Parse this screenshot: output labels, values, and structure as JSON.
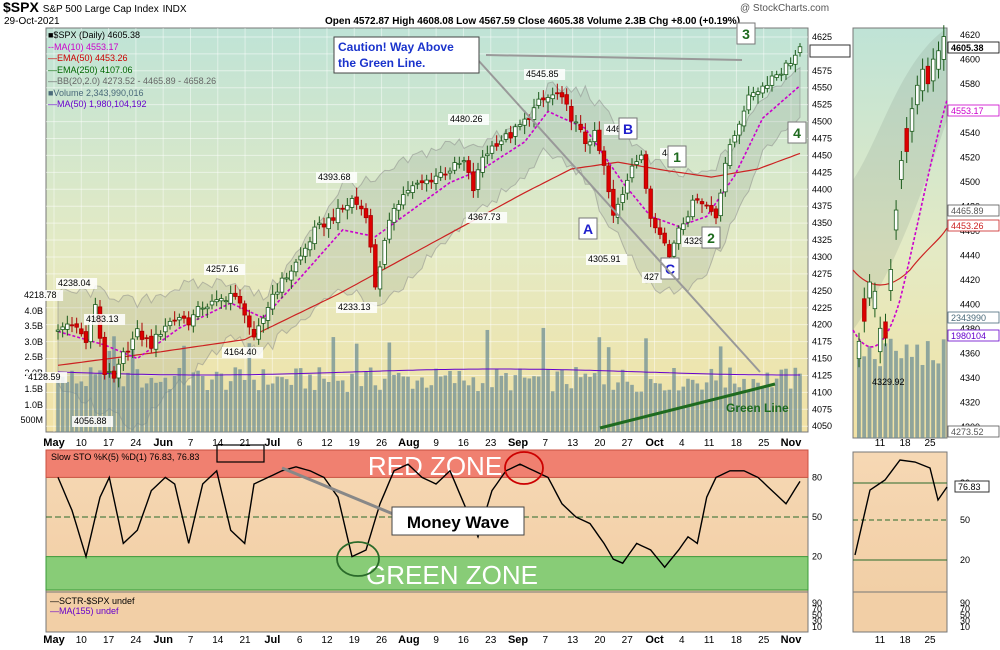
{
  "header": {
    "symbol": "$SPX",
    "name": "S&P 500 Large Cap Index",
    "exchange": "INDX",
    "date": "29-Oct-2021",
    "watermark": "@ StockCharts.com",
    "ohlc": "Open 4572.87  High 4608.08  Low 4567.59  Close 4605.38  Volume 2.3B  Chg +8.00 (+0.19%)"
  },
  "legend": [
    {
      "text": "■$SPX (Daily) 4605.38",
      "color": "#000000"
    },
    {
      "text": "--MA(10) 4553.17",
      "color": "#cc00cc"
    },
    {
      "text": "—EMA(50) 4453.26",
      "color": "#cc0000"
    },
    {
      "text": "—EMA(250) 4107.06",
      "color": "#006600"
    },
    {
      "text": "—BB(20,2.0) 4273.52 - 4465.89 - 4658.26",
      "color": "#666666"
    },
    {
      "text": "■Volume 2,343,990,016",
      "color": "#4a6a7a"
    },
    {
      "text": "—MA(50) 1,980,104,192",
      "color": "#6600cc"
    }
  ],
  "chart_data": {
    "type": "candlestick",
    "y_axis": [
      4050,
      4075,
      4100,
      4125,
      4150,
      4175,
      4200,
      4225,
      4250,
      4275,
      4300,
      4325,
      4350,
      4375,
      4400,
      4425,
      4450,
      4475,
      4500,
      4525,
      4550,
      4575,
      4600,
      4625
    ],
    "volume_axis": [
      "4.0B",
      "3.5B",
      "3.0B",
      "2.5B",
      "2.0B",
      "1.5B",
      "1.0B",
      "500M"
    ],
    "x_labels": [
      "May",
      "10",
      "17",
      "24",
      "Jun",
      "7",
      "14",
      "21",
      "Jul",
      "6",
      "12",
      "19",
      "26",
      "Aug",
      "9",
      "16",
      "23",
      "Sep",
      "7",
      "13",
      "20",
      "27",
      "Oct",
      "4",
      "11",
      "18",
      "25",
      "Nov"
    ],
    "price_path": [
      [
        0,
        4192
      ],
      [
        3,
        4205
      ],
      [
        6,
        4175
      ],
      [
        8,
        4232
      ],
      [
        10,
        4130
      ],
      [
        12,
        4118
      ],
      [
        14,
        4155
      ],
      [
        17,
        4188
      ],
      [
        20,
        4170
      ],
      [
        23,
        4200
      ],
      [
        26,
        4212
      ],
      [
        28,
        4205
      ],
      [
        31,
        4228
      ],
      [
        34,
        4232
      ],
      [
        37,
        4246
      ],
      [
        40,
        4220
      ],
      [
        42,
        4175
      ],
      [
        44,
        4210
      ],
      [
        46,
        4245
      ],
      [
        49,
        4272
      ],
      [
        52,
        4300
      ],
      [
        55,
        4338
      ],
      [
        58,
        4355
      ],
      [
        61,
        4370
      ],
      [
        63,
        4385
      ],
      [
        66,
        4365
      ],
      [
        68,
        4258
      ],
      [
        70,
        4320
      ],
      [
        72,
        4375
      ],
      [
        75,
        4400
      ],
      [
        78,
        4408
      ],
      [
        81,
        4420
      ],
      [
        84,
        4430
      ],
      [
        87,
        4440
      ],
      [
        89,
        4400
      ],
      [
        91,
        4448
      ],
      [
        94,
        4470
      ],
      [
        97,
        4480
      ],
      [
        100,
        4500
      ],
      [
        103,
        4527
      ],
      [
        105,
        4535
      ],
      [
        107,
        4540
      ],
      [
        109,
        4520
      ],
      [
        111,
        4495
      ],
      [
        113,
        4470
      ],
      [
        115,
        4480
      ],
      [
        117,
        4432
      ],
      [
        119,
        4358
      ],
      [
        121,
        4395
      ],
      [
        123,
        4440
      ],
      [
        125,
        4445
      ],
      [
        127,
        4360
      ],
      [
        129,
        4340
      ],
      [
        131,
        4300
      ],
      [
        133,
        4345
      ],
      [
        135,
        4365
      ],
      [
        137,
        4390
      ],
      [
        139,
        4375
      ],
      [
        141,
        4360
      ],
      [
        143,
        4440
      ],
      [
        145,
        4480
      ],
      [
        147,
        4520
      ],
      [
        149,
        4545
      ],
      [
        151,
        4552
      ],
      [
        153,
        4567
      ],
      [
        155,
        4575
      ],
      [
        157,
        4590
      ],
      [
        159,
        4605
      ]
    ],
    "ma10_path": [
      [
        0,
        4190
      ],
      [
        10,
        4170
      ],
      [
        17,
        4150
      ],
      [
        26,
        4195
      ],
      [
        37,
        4232
      ],
      [
        44,
        4210
      ],
      [
        52,
        4270
      ],
      [
        61,
        4340
      ],
      [
        68,
        4330
      ],
      [
        75,
        4365
      ],
      [
        84,
        4410
      ],
      [
        91,
        4430
      ],
      [
        100,
        4470
      ],
      [
        105,
        4515
      ],
      [
        113,
        4490
      ],
      [
        121,
        4410
      ],
      [
        127,
        4360
      ],
      [
        133,
        4345
      ],
      [
        139,
        4360
      ],
      [
        145,
        4420
      ],
      [
        151,
        4505
      ],
      [
        159,
        4553
      ]
    ],
    "ema50_path": [
      [
        0,
        4140
      ],
      [
        20,
        4158
      ],
      [
        40,
        4178
      ],
      [
        60,
        4245
      ],
      [
        80,
        4320
      ],
      [
        100,
        4395
      ],
      [
        110,
        4430
      ],
      [
        120,
        4440
      ],
      [
        130,
        4428
      ],
      [
        140,
        4418
      ],
      [
        150,
        4430
      ],
      [
        159,
        4453
      ]
    ],
    "annotations": {
      "price_labels": [
        "4218.78",
        "4238.04",
        "4183.13",
        "4128.59",
        "4056.88",
        "4257.16",
        "4164.40",
        "4393.68",
        "4233.13",
        "4480.26",
        "4367.73",
        "4545.85",
        "4305.91",
        "446",
        "4427",
        "427",
        "4329"
      ],
      "wave_labels": [
        "A",
        "B",
        "C",
        "1",
        "2",
        "3",
        "4"
      ],
      "caution_line1": "Caution! Way Above",
      "caution_line2": "the Green Line.",
      "green_line_label": "Green Line"
    },
    "oscillator": {
      "title": "Slow STO %K(5) %D(1) 76.83, 76.83",
      "y_labels": [
        80,
        50,
        20
      ],
      "red_zone": "RED ZONE",
      "green_zone": "GREEN ZONE",
      "money_wave": "Money Wave",
      "sto_path": [
        [
          0,
          80
        ],
        [
          3,
          55
        ],
        [
          6,
          20
        ],
        [
          9,
          65
        ],
        [
          11,
          80
        ],
        [
          14,
          30
        ],
        [
          17,
          40
        ],
        [
          20,
          70
        ],
        [
          23,
          80
        ],
        [
          25,
          75
        ],
        [
          28,
          30
        ],
        [
          31,
          75
        ],
        [
          34,
          85
        ],
        [
          37,
          40
        ],
        [
          40,
          30
        ],
        [
          42,
          75
        ],
        [
          45,
          80
        ],
        [
          48,
          85
        ],
        [
          51,
          88
        ],
        [
          54,
          85
        ],
        [
          57,
          80
        ],
        [
          60,
          65
        ],
        [
          63,
          20
        ],
        [
          66,
          25
        ],
        [
          69,
          60
        ],
        [
          72,
          85
        ],
        [
          75,
          90
        ],
        [
          78,
          80
        ],
        [
          81,
          75
        ],
        [
          84,
          85
        ],
        [
          87,
          60
        ],
        [
          90,
          35
        ],
        [
          93,
          70
        ],
        [
          96,
          85
        ],
        [
          99,
          90
        ],
        [
          102,
          85
        ],
        [
          105,
          80
        ],
        [
          108,
          60
        ],
        [
          111,
          50
        ],
        [
          114,
          45
        ],
        [
          117,
          30
        ],
        [
          119,
          18
        ],
        [
          121,
          15
        ],
        [
          124,
          30
        ],
        [
          127,
          25
        ],
        [
          130,
          12
        ],
        [
          133,
          25
        ],
        [
          135,
          35
        ],
        [
          137,
          30
        ],
        [
          139,
          65
        ],
        [
          141,
          80
        ],
        [
          144,
          85
        ],
        [
          147,
          85
        ],
        [
          150,
          80
        ],
        [
          153,
          70
        ],
        [
          156,
          60
        ],
        [
          159,
          77
        ]
      ]
    },
    "sctr": {
      "line1": "—SCTR-$SPX undef",
      "line2": "—MA(155) undef",
      "y_labels": [
        "90",
        "70",
        "50",
        "30",
        "10"
      ]
    },
    "side_chart": {
      "y_axis": [
        4620,
        4600,
        4580,
        4560,
        4540,
        4520,
        4500,
        4480,
        4460,
        4440,
        4420,
        4400,
        4380,
        4360,
        4340,
        4320,
        4300
      ],
      "value_labels": [
        "4605.38",
        "4553.17",
        "4465.89",
        "4453.26",
        "2343990",
        "1980104",
        "4273.52"
      ],
      "x_labels": [
        "11",
        "18",
        "25"
      ],
      "low_label": "4329.92",
      "sto_value": "76.83",
      "sto_y_labels": [
        80,
        50,
        20
      ],
      "sctr_y_labels": [
        "90",
        "70",
        "50",
        "30",
        "10"
      ]
    }
  }
}
